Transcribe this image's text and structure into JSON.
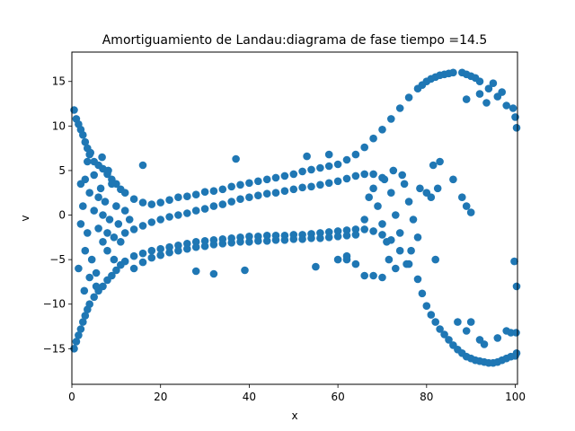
{
  "chart_data": {
    "type": "scatter",
    "title": "Amortiguamiento de Landau:diagrama de fase  tiempo =14.5",
    "xlabel": "x",
    "ylabel": "v",
    "xlim": [
      0,
      100.5
    ],
    "ylim": [
      -19,
      18.3
    ],
    "xticks": [
      0,
      20,
      40,
      60,
      80,
      100
    ],
    "yticks": [
      -15,
      -10,
      -5,
      0,
      5,
      10,
      15
    ],
    "grid": false,
    "legend": "none",
    "marker_color": "#1f77b4",
    "marker": "circle",
    "series": [
      {
        "name": "",
        "points": [
          [
            0.5,
            11.8
          ],
          [
            1.0,
            10.8
          ],
          [
            1.5,
            10.2
          ],
          [
            2.0,
            9.6
          ],
          [
            2.5,
            9.0
          ],
          [
            3.0,
            8.2
          ],
          [
            3.5,
            7.5
          ],
          [
            4.0,
            6.8
          ],
          [
            5.0,
            6.0
          ],
          [
            6.0,
            5.6
          ],
          [
            7.0,
            5.2
          ],
          [
            8.0,
            4.6
          ],
          [
            9.0,
            4.0
          ],
          [
            10.0,
            3.5
          ],
          [
            11.0,
            2.9
          ],
          [
            12.0,
            2.5
          ],
          [
            14.0,
            1.8
          ],
          [
            16.0,
            1.4
          ],
          [
            18.0,
            1.2
          ],
          [
            20.0,
            1.4
          ],
          [
            22.0,
            1.7
          ],
          [
            24.0,
            2.0
          ],
          [
            26.0,
            2.1
          ],
          [
            28.0,
            2.3
          ],
          [
            30.0,
            2.6
          ],
          [
            32.0,
            2.7
          ],
          [
            34.0,
            2.9
          ],
          [
            36.0,
            3.2
          ],
          [
            38.0,
            3.4
          ],
          [
            40.0,
            3.6
          ],
          [
            42.0,
            3.8
          ],
          [
            44.0,
            4.0
          ],
          [
            46.0,
            4.2
          ],
          [
            48.0,
            4.4
          ],
          [
            50.0,
            4.6
          ],
          [
            52.0,
            4.9
          ],
          [
            54.0,
            5.1
          ],
          [
            56.0,
            5.3
          ],
          [
            58.0,
            5.5
          ],
          [
            60.0,
            5.7
          ],
          [
            62.0,
            6.2
          ],
          [
            64.0,
            6.8
          ],
          [
            66.0,
            7.6
          ],
          [
            68.0,
            8.6
          ],
          [
            70.0,
            9.6
          ],
          [
            72.0,
            10.8
          ],
          [
            74.0,
            12.0
          ],
          [
            76.0,
            13.2
          ],
          [
            78.0,
            14.2
          ],
          [
            80.0,
            15.0
          ],
          [
            82.0,
            15.5
          ],
          [
            84.0,
            15.8
          ],
          [
            86.0,
            16.0
          ],
          [
            88.0,
            16.0
          ],
          [
            90.0,
            15.6
          ],
          [
            92.0,
            15.0
          ],
          [
            94.0,
            14.2
          ],
          [
            96.0,
            13.3
          ],
          [
            98.0,
            12.3
          ],
          [
            100.0,
            11.0
          ],
          [
            100.3,
            9.8
          ],
          [
            99.5,
            12.0
          ],
          [
            97.0,
            13.8
          ],
          [
            95.0,
            14.8
          ],
          [
            91.0,
            15.4
          ],
          [
            89.0,
            15.8
          ],
          [
            85.0,
            15.9
          ],
          [
            83.0,
            15.7
          ],
          [
            81.0,
            15.3
          ],
          [
            79.0,
            14.6
          ],
          [
            12.0,
            -2.0
          ],
          [
            14.0,
            -1.6
          ],
          [
            16.0,
            -1.2
          ],
          [
            18.0,
            -0.8
          ],
          [
            20.0,
            -0.5
          ],
          [
            22.0,
            -0.2
          ],
          [
            24.0,
            0.0
          ],
          [
            26.0,
            0.2
          ],
          [
            28.0,
            0.5
          ],
          [
            30.0,
            0.7
          ],
          [
            32.0,
            1.0
          ],
          [
            34.0,
            1.2
          ],
          [
            36.0,
            1.5
          ],
          [
            38.0,
            1.8
          ],
          [
            40.0,
            2.0
          ],
          [
            42.0,
            2.2
          ],
          [
            44.0,
            2.4
          ],
          [
            46.0,
            2.5
          ],
          [
            48.0,
            2.7
          ],
          [
            50.0,
            2.9
          ],
          [
            52.0,
            3.1
          ],
          [
            54.0,
            3.2
          ],
          [
            56.0,
            3.4
          ],
          [
            58.0,
            3.6
          ],
          [
            60.0,
            3.8
          ],
          [
            62.0,
            4.1
          ],
          [
            64.0,
            4.4
          ],
          [
            66.0,
            4.6
          ],
          [
            68.0,
            4.6
          ],
          [
            70.0,
            4.2
          ],
          [
            0.5,
            -15.0
          ],
          [
            1.0,
            -14.2
          ],
          [
            1.5,
            -13.5
          ],
          [
            2.0,
            -12.8
          ],
          [
            2.5,
            -12.0
          ],
          [
            3.0,
            -11.3
          ],
          [
            3.5,
            -10.6
          ],
          [
            4.0,
            -10.0
          ],
          [
            5.0,
            -9.2
          ],
          [
            6.0,
            -8.5
          ],
          [
            7.0,
            -8.0
          ],
          [
            8.0,
            -7.3
          ],
          [
            9.0,
            -6.8
          ],
          [
            10.0,
            -6.2
          ],
          [
            11.0,
            -5.6
          ],
          [
            12.0,
            -5.2
          ],
          [
            14.0,
            -4.6
          ],
          [
            16.0,
            -4.3
          ],
          [
            18.0,
            -4.0
          ],
          [
            20.0,
            -3.8
          ],
          [
            22.0,
            -3.6
          ],
          [
            24.0,
            -3.4
          ],
          [
            26.0,
            -3.2
          ],
          [
            28.0,
            -3.0
          ],
          [
            30.0,
            -2.9
          ],
          [
            32.0,
            -2.8
          ],
          [
            34.0,
            -2.7
          ],
          [
            36.0,
            -2.6
          ],
          [
            38.0,
            -2.5
          ],
          [
            40.0,
            -2.4
          ],
          [
            42.0,
            -2.4
          ],
          [
            44.0,
            -2.3
          ],
          [
            46.0,
            -2.3
          ],
          [
            48.0,
            -2.3
          ],
          [
            50.0,
            -2.2
          ],
          [
            52.0,
            -2.2
          ],
          [
            54.0,
            -2.1
          ],
          [
            56.0,
            -2.0
          ],
          [
            58.0,
            -1.9
          ],
          [
            60.0,
            -1.8
          ],
          [
            62.0,
            -1.7
          ],
          [
            64.0,
            -1.6
          ],
          [
            66.0,
            -1.6
          ],
          [
            68.0,
            -1.8
          ],
          [
            70.0,
            -2.2
          ],
          [
            72.0,
            -2.8
          ],
          [
            74.0,
            -4.0
          ],
          [
            76.0,
            -5.5
          ],
          [
            78.0,
            -7.2
          ],
          [
            79.0,
            -8.8
          ],
          [
            80.0,
            -10.2
          ],
          [
            81.0,
            -11.2
          ],
          [
            82.0,
            -12.0
          ],
          [
            83.0,
            -12.8
          ],
          [
            84.0,
            -13.4
          ],
          [
            85.0,
            -14.0
          ],
          [
            86.0,
            -14.6
          ],
          [
            87.0,
            -15.1
          ],
          [
            88.0,
            -15.5
          ],
          [
            89.0,
            -15.9
          ],
          [
            90.0,
            -16.1
          ],
          [
            91.0,
            -16.3
          ],
          [
            92.0,
            -16.4
          ],
          [
            93.0,
            -16.5
          ],
          [
            94.0,
            -16.6
          ],
          [
            95.0,
            -16.6
          ],
          [
            96.0,
            -16.5
          ],
          [
            97.0,
            -16.3
          ],
          [
            98.0,
            -16.1
          ],
          [
            99.0,
            -15.9
          ],
          [
            100.0,
            -15.8
          ],
          [
            100.3,
            -15.5
          ],
          [
            14.0,
            -6.0
          ],
          [
            16.0,
            -5.3
          ],
          [
            18.0,
            -4.8
          ],
          [
            20.0,
            -4.5
          ],
          [
            22.0,
            -4.2
          ],
          [
            24.0,
            -4.0
          ],
          [
            26.0,
            -3.8
          ],
          [
            28.0,
            -3.6
          ],
          [
            30.0,
            -3.5
          ],
          [
            32.0,
            -3.3
          ],
          [
            34.0,
            -3.2
          ],
          [
            36.0,
            -3.1
          ],
          [
            38.0,
            -3.0
          ],
          [
            40.0,
            -3.0
          ],
          [
            42.0,
            -2.9
          ],
          [
            44.0,
            -2.9
          ],
          [
            46.0,
            -2.8
          ],
          [
            48.0,
            -2.8
          ],
          [
            50.0,
            -2.7
          ],
          [
            52.0,
            -2.7
          ],
          [
            54.0,
            -2.6
          ],
          [
            56.0,
            -2.6
          ],
          [
            58.0,
            -2.5
          ],
          [
            60.0,
            -2.4
          ],
          [
            62.0,
            -2.3
          ],
          [
            64.0,
            -2.2
          ],
          [
            3.0,
            4.0
          ],
          [
            4.0,
            2.5
          ],
          [
            5.0,
            0.5
          ],
          [
            6.0,
            -1.5
          ],
          [
            7.0,
            -3.0
          ],
          [
            8.0,
            -4.0
          ],
          [
            3.5,
            -2.0
          ],
          [
            4.5,
            -5.0
          ],
          [
            5.5,
            -6.5
          ],
          [
            6.5,
            3.0
          ],
          [
            7.5,
            1.5
          ],
          [
            8.5,
            -0.5
          ],
          [
            9.5,
            -2.5
          ],
          [
            2.5,
            1.0
          ],
          [
            3.0,
            -4.0
          ],
          [
            4.0,
            -7.0
          ],
          [
            5.0,
            4.5
          ],
          [
            6.0,
            2.0
          ],
          [
            7.0,
            0.0
          ],
          [
            8.0,
            -2.0
          ],
          [
            9.0,
            3.5
          ],
          [
            10.0,
            1.0
          ],
          [
            10.5,
            -1.0
          ],
          [
            11.0,
            -3.0
          ],
          [
            2.0,
            -1.0
          ],
          [
            2.0,
            3.5
          ],
          [
            1.5,
            -6.0
          ],
          [
            3.5,
            6.0
          ],
          [
            2.8,
            -8.5
          ],
          [
            4.2,
            7.0
          ],
          [
            5.5,
            -8.0
          ],
          [
            6.8,
            6.5
          ],
          [
            8.2,
            5.0
          ],
          [
            9.5,
            -5.0
          ],
          [
            12.0,
            0.5
          ],
          [
            13.0,
            -0.5
          ],
          [
            68.0,
            3.0
          ],
          [
            69.0,
            1.0
          ],
          [
            70.0,
            -1.0
          ],
          [
            71.0,
            -3.0
          ],
          [
            72.0,
            2.5
          ],
          [
            73.0,
            0.0
          ],
          [
            74.0,
            -2.0
          ],
          [
            75.0,
            3.5
          ],
          [
            76.0,
            1.5
          ],
          [
            77.0,
            -0.5
          ],
          [
            78.0,
            -2.5
          ],
          [
            72.5,
            5.0
          ],
          [
            74.5,
            4.5
          ],
          [
            76.5,
            -4.0
          ],
          [
            70.5,
            4.0
          ],
          [
            66.0,
            -0.5
          ],
          [
            67.0,
            2.0
          ],
          [
            71.5,
            -5.0
          ],
          [
            75.5,
            -5.5
          ],
          [
            78.5,
            3.0
          ],
          [
            70.0,
            -7.0
          ],
          [
            68.0,
            -6.8
          ],
          [
            66.0,
            -6.8
          ],
          [
            73.0,
            -6.0
          ],
          [
            64.0,
            -5.5
          ],
          [
            62.0,
            -5.0
          ],
          [
            81.5,
            5.6
          ],
          [
            82.0,
            -5.0
          ],
          [
            83.0,
            6.0
          ],
          [
            80.0,
            2.5
          ],
          [
            82.5,
            3.0
          ],
          [
            81.0,
            2.0
          ],
          [
            92.0,
            13.6
          ],
          [
            89.0,
            13.0
          ],
          [
            93.5,
            12.6
          ],
          [
            86.0,
            4.0
          ],
          [
            88.0,
            2.0
          ],
          [
            89.0,
            1.0
          ],
          [
            90.0,
            0.3
          ],
          [
            87.0,
            -12.0
          ],
          [
            90.0,
            -12.0
          ],
          [
            89.0,
            -13.0
          ],
          [
            92.0,
            -14.0
          ],
          [
            93.0,
            -14.5
          ],
          [
            96.0,
            -13.8
          ],
          [
            98.0,
            -13.0
          ],
          [
            99.0,
            -13.2
          ],
          [
            100.2,
            -13.2
          ],
          [
            99.8,
            -5.2
          ],
          [
            100.3,
            -8.0
          ],
          [
            37.0,
            6.3
          ],
          [
            53.0,
            6.6
          ],
          [
            58.0,
            6.8
          ],
          [
            16.0,
            5.6
          ],
          [
            28.0,
            -6.3
          ],
          [
            32.0,
            -6.6
          ],
          [
            39.0,
            -6.2
          ],
          [
            55.0,
            -5.8
          ],
          [
            60.0,
            -5.0
          ],
          [
            62.0,
            -4.6
          ]
        ]
      }
    ]
  }
}
